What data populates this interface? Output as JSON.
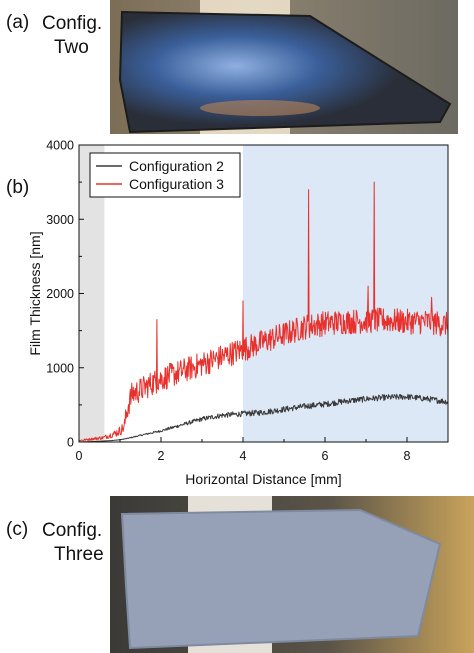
{
  "panels": {
    "a": {
      "label": "(a)",
      "line1": "Config.",
      "line2": "Two"
    },
    "b": {
      "label": "(b)"
    },
    "c": {
      "label": "(c)",
      "line1": "Config.",
      "line2": "Three"
    }
  },
  "colors": {
    "config2": "#3a3a3a",
    "config3": "#e8302c",
    "shade_left": "#e3e3e3",
    "shade_right": "#dce8f5"
  },
  "chart_data": {
    "type": "line",
    "xlabel": "Horizontal Distance [mm]",
    "ylabel": "Film Thickness [nm]",
    "xlim": [
      0,
      9
    ],
    "ylim": [
      0,
      4000
    ],
    "xticks": [
      0,
      2,
      4,
      6,
      8
    ],
    "yticks": [
      0,
      1000,
      2000,
      3000,
      4000
    ],
    "legend_position": "top-left",
    "shaded_regions": [
      {
        "x0": 0,
        "x1": 0.62,
        "color": "gray"
      },
      {
        "x0": 4.0,
        "x1": 9.0,
        "color": "light-blue"
      }
    ],
    "series": [
      {
        "name": "Configuration 2",
        "x": [
          0.0,
          0.5,
          0.8,
          1.0,
          1.2,
          1.5,
          2.0,
          2.5,
          3.0,
          3.5,
          4.0,
          4.5,
          5.0,
          5.5,
          6.0,
          6.5,
          7.0,
          7.5,
          8.0,
          8.5,
          9.0
        ],
        "y": [
          0,
          10,
          20,
          30,
          50,
          90,
          150,
          230,
          310,
          360,
          380,
          400,
          440,
          480,
          510,
          550,
          580,
          600,
          610,
          580,
          540
        ],
        "noise": 40
      },
      {
        "name": "Configuration 3",
        "x": [
          0.0,
          0.6,
          0.9,
          1.0,
          1.1,
          1.2,
          1.3,
          1.5,
          1.8,
          2.0,
          2.5,
          3.0,
          3.5,
          4.0,
          4.5,
          5.0,
          5.5,
          6.0,
          6.5,
          7.0,
          7.5,
          8.0,
          8.5,
          9.0
        ],
        "y": [
          20,
          60,
          120,
          150,
          200,
          500,
          650,
          700,
          800,
          850,
          950,
          1050,
          1150,
          1250,
          1350,
          1450,
          1550,
          1600,
          1620,
          1630,
          1640,
          1620,
          1620,
          1580
        ],
        "noise": 170,
        "spikes": [
          {
            "x": 1.9,
            "y": 1650
          },
          {
            "x": 4.0,
            "y": 1900
          },
          {
            "x": 5.6,
            "y": 3400
          },
          {
            "x": 7.2,
            "y": 3500
          },
          {
            "x": 7.05,
            "y": 2100
          },
          {
            "x": 8.6,
            "y": 1950
          }
        ]
      }
    ]
  }
}
